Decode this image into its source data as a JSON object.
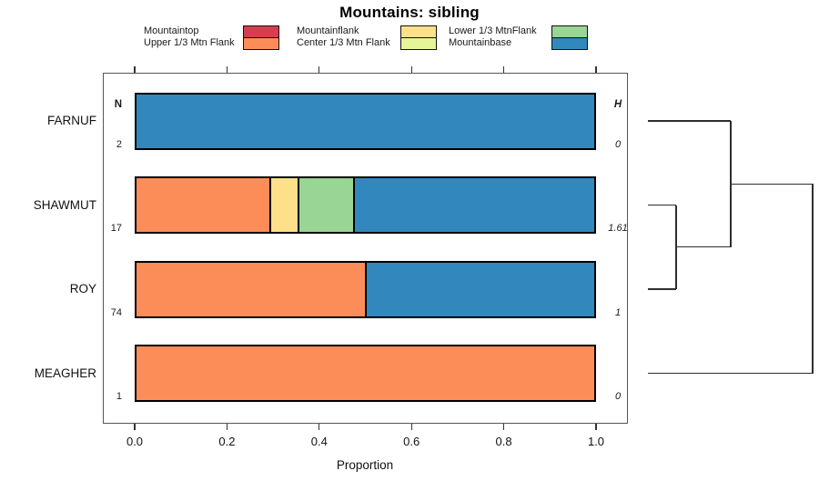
{
  "chart_data": {
    "type": "bar",
    "orientation": "horizontal",
    "stacked": true,
    "title": "Mountains: sibling",
    "xlabel": "Proportion",
    "xlim": [
      0,
      1
    ],
    "x_ticks": [
      0,
      0.2,
      0.4,
      0.6,
      0.8,
      1.0
    ],
    "x_tick_labels": [
      "0.0",
      "0.2",
      "0.4",
      "0.6",
      "0.8",
      "1.0"
    ],
    "grid": false,
    "legend_position": "top",
    "n_header": "N",
    "h_header": "H",
    "legend": {
      "items": [
        {
          "label": "Mountaintop",
          "color": "#D53E4F"
        },
        {
          "label": "Upper 1/3 Mtn Flank",
          "color": "#FC8D59"
        },
        {
          "label": "Mountainflank",
          "color": "#FEE08B"
        },
        {
          "label": "Center 1/3 Mtn Flank",
          "color": "#E6F598"
        },
        {
          "label": "Lower 1/3 MtnFlank",
          "color": "#99D594"
        },
        {
          "label": "Mountainbase",
          "color": "#3288BD"
        }
      ]
    },
    "rows": [
      {
        "label": "FARNUF",
        "n": "2",
        "h": "0",
        "segments": [
          {
            "category": "Mountainbase",
            "value": 1.0
          }
        ]
      },
      {
        "label": "SHAWMUT",
        "n": "17",
        "h": "1.61",
        "segments": [
          {
            "category": "Upper 1/3 Mtn Flank",
            "value": 0.294
          },
          {
            "category": "Mountainflank",
            "value": 0.059
          },
          {
            "category": "Lower 1/3 MtnFlank",
            "value": 0.118
          },
          {
            "category": "Mountainbase",
            "value": 0.529
          }
        ]
      },
      {
        "label": "ROY",
        "n": "74",
        "h": "1",
        "segments": [
          {
            "category": "Upper 1/3 Mtn Flank",
            "value": 0.5
          },
          {
            "category": "Mountainbase",
            "value": 0.5
          }
        ]
      },
      {
        "label": "MEAGHER",
        "n": "1",
        "h": "0",
        "segments": [
          {
            "category": "Upper 1/3 Mtn Flank",
            "value": 1.0
          }
        ]
      }
    ],
    "dendrogram": {
      "leaf_order": [
        "FARNUF",
        "SHAWMUT",
        "ROY",
        "MEAGHER"
      ],
      "merges": [
        {
          "left": "SHAWMUT",
          "right": "ROY",
          "height": 0.171
        },
        {
          "left": "@0",
          "right": "FARNUF",
          "height": 0.503
        },
        {
          "left": "@1",
          "right": "MEAGHER",
          "height": 1.0
        }
      ]
    }
  }
}
